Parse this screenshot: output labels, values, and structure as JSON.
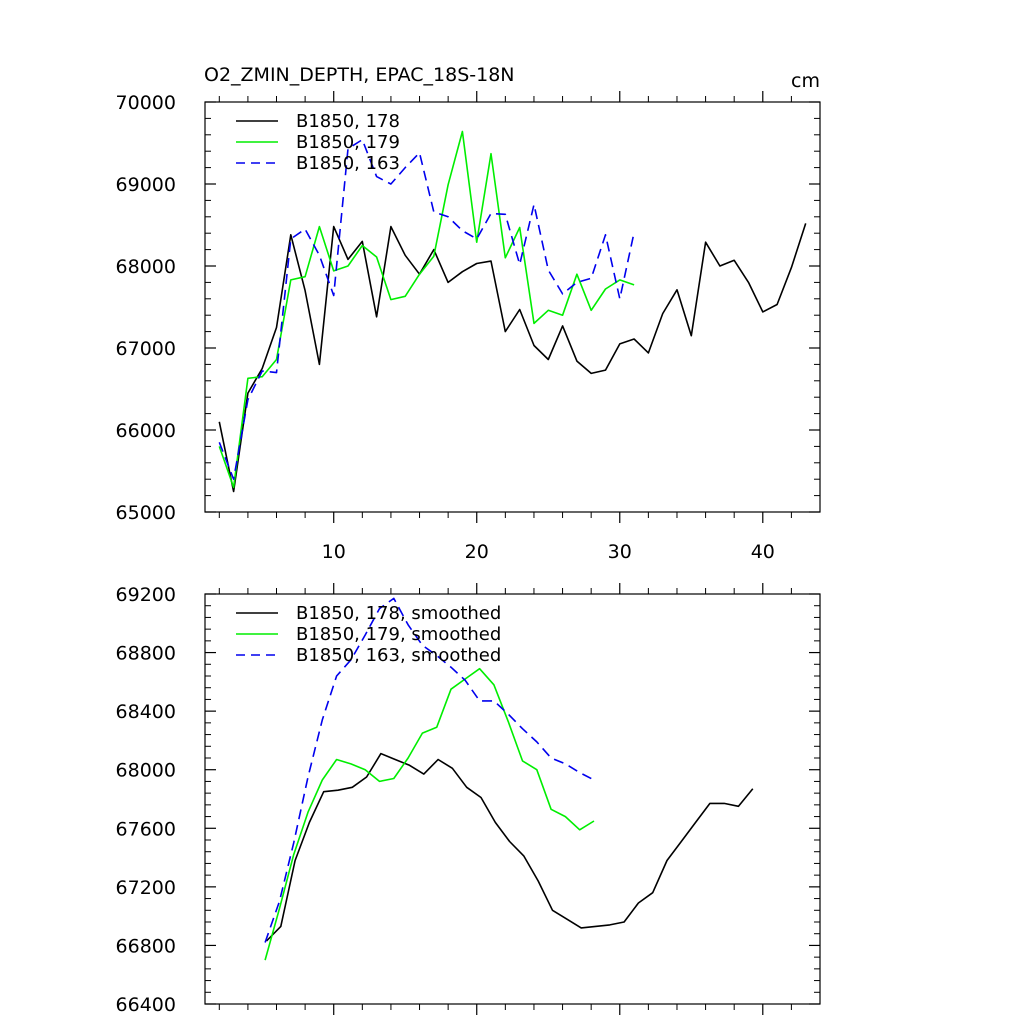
{
  "chart_data": [
    {
      "type": "line",
      "title": "O2_ZMIN_DEPTH, EPAC_18S-18N",
      "units": "cm",
      "xlim": [
        1,
        44
      ],
      "ylim": [
        65000,
        70000
      ],
      "x_ticks": [
        10,
        20,
        30,
        40
      ],
      "y_ticks": [
        65000,
        66000,
        67000,
        68000,
        69000,
        70000
      ],
      "x_ticks_labeled": true,
      "legend": "top-left",
      "series": [
        {
          "name": "B1850, 178",
          "color": "#000000",
          "dash": "solid",
          "x": [
            2,
            3,
            4,
            5,
            6,
            7,
            8,
            9,
            10,
            11,
            12,
            13,
            14,
            15,
            16,
            17,
            18,
            19,
            20,
            21,
            22,
            23,
            24,
            25,
            26,
            27,
            28,
            29,
            30,
            31,
            32,
            33,
            34,
            35,
            36,
            37,
            38,
            39,
            40,
            41,
            42,
            43
          ],
          "y": [
            66100,
            65250,
            66450,
            66750,
            67250,
            68380,
            67700,
            66800,
            68480,
            68080,
            68300,
            67380,
            68480,
            68130,
            67900,
            68200,
            67800,
            67930,
            68030,
            68060,
            67200,
            67470,
            67030,
            66860,
            67270,
            66840,
            66690,
            66730,
            67050,
            67110,
            66940,
            67420,
            67710,
            67150,
            68290,
            68000,
            68070,
            67800,
            67440,
            67530,
            67980,
            68520
          ]
        },
        {
          "name": "B1850, 179",
          "color": "#00ee00",
          "dash": "solid",
          "x": [
            2,
            3,
            4,
            5,
            6,
            7,
            8,
            9,
            10,
            11,
            12,
            13,
            14,
            15,
            16,
            17,
            18,
            19,
            20,
            21,
            22,
            23,
            24,
            25,
            26,
            27,
            28,
            29,
            30,
            31
          ],
          "y": [
            65800,
            65300,
            66630,
            66650,
            66860,
            67830,
            67870,
            68480,
            67940,
            68000,
            68250,
            68110,
            67590,
            67630,
            67900,
            68120,
            68990,
            69640,
            68290,
            69370,
            68100,
            68470,
            67300,
            67460,
            67400,
            67900,
            67460,
            67720,
            67830,
            67770
          ]
        },
        {
          "name": "B1850, 163",
          "color": "#0000ee",
          "dash": "dashed",
          "x": [
            2,
            3,
            4,
            5,
            6,
            7,
            8,
            9,
            10,
            11,
            12,
            13,
            14,
            15,
            16,
            17,
            18,
            19,
            20,
            21,
            22,
            23,
            24,
            25,
            26,
            27,
            28,
            29,
            30,
            31
          ],
          "y": [
            65850,
            65400,
            66370,
            66720,
            66700,
            68330,
            68450,
            68130,
            67640,
            69430,
            69540,
            69090,
            69000,
            69200,
            69380,
            68660,
            68600,
            68430,
            68330,
            68640,
            68630,
            68020,
            68750,
            67950,
            67660,
            67800,
            67850,
            68380,
            67600,
            68410
          ]
        }
      ]
    },
    {
      "type": "line",
      "xlim": [
        1,
        44
      ],
      "ylim": [
        66400,
        69200
      ],
      "x_ticks": [
        10,
        20,
        30,
        40
      ],
      "y_ticks": [
        66400,
        66800,
        67200,
        67600,
        68000,
        68400,
        68800,
        69200
      ],
      "x_ticks_labeled": false,
      "legend": "top-left",
      "series": [
        {
          "name": "B1850, 178, smoothed",
          "color": "#000000",
          "dash": "solid",
          "x": [
            5.3,
            6.3,
            7.3,
            8.3,
            9.3,
            10.3,
            11.3,
            12.3,
            13.3,
            14.3,
            15.3,
            16.3,
            17.3,
            18.3,
            19.3,
            20.3,
            21.3,
            22.3,
            23.3,
            24.3,
            25.3,
            26.3,
            27.3,
            28.3,
            29.3,
            30.3,
            31.3,
            32.3,
            33.3,
            34.3,
            35.3,
            36.3,
            37.3,
            38.3,
            39.3
          ],
          "y": [
            66830,
            66930,
            67380,
            67640,
            67850,
            67860,
            67880,
            67950,
            68110,
            68070,
            68030,
            67970,
            68070,
            68010,
            67880,
            67810,
            67640,
            67510,
            67410,
            67240,
            67040,
            66980,
            66920,
            66930,
            66940,
            66960,
            67090,
            67160,
            67380,
            67510,
            67640,
            67770,
            67770,
            67750,
            67870
          ]
        },
        {
          "name": "B1850, 179, smoothed",
          "color": "#00ee00",
          "dash": "solid",
          "x": [
            5.2,
            6.2,
            7.2,
            8.2,
            9.2,
            10.2,
            11.2,
            12.2,
            13.2,
            14.2,
            15.2,
            16.2,
            17.2,
            18.2,
            19.2,
            20.2,
            21.2,
            22.2,
            23.2,
            24.2,
            25.2,
            26.2,
            27.2,
            28.2
          ],
          "y": [
            66700,
            67050,
            67420,
            67710,
            67930,
            68070,
            68040,
            68000,
            67920,
            67940,
            68080,
            68250,
            68290,
            68550,
            68620,
            68690,
            68580,
            68330,
            68060,
            68000,
            67730,
            67680,
            67590,
            67650
          ]
        },
        {
          "name": "B1850, 163, smoothed",
          "color": "#0000ee",
          "dash": "dashed",
          "x": [
            5.2,
            6.2,
            7.2,
            8.2,
            9.2,
            10.2,
            11.2,
            12.2,
            13.2,
            14.2,
            15.2,
            16.2,
            17.2,
            18.2,
            19.2,
            20.2,
            21.2,
            22.2,
            23.2,
            24.2,
            25.2,
            26.2,
            27.2,
            28.2
          ],
          "y": [
            66820,
            67100,
            67500,
            67950,
            68340,
            68640,
            68750,
            68920,
            69100,
            69170,
            68990,
            68850,
            68780,
            68700,
            68610,
            68470,
            68470,
            68380,
            68280,
            68190,
            68080,
            68040,
            67980,
            67930
          ]
        }
      ]
    }
  ]
}
